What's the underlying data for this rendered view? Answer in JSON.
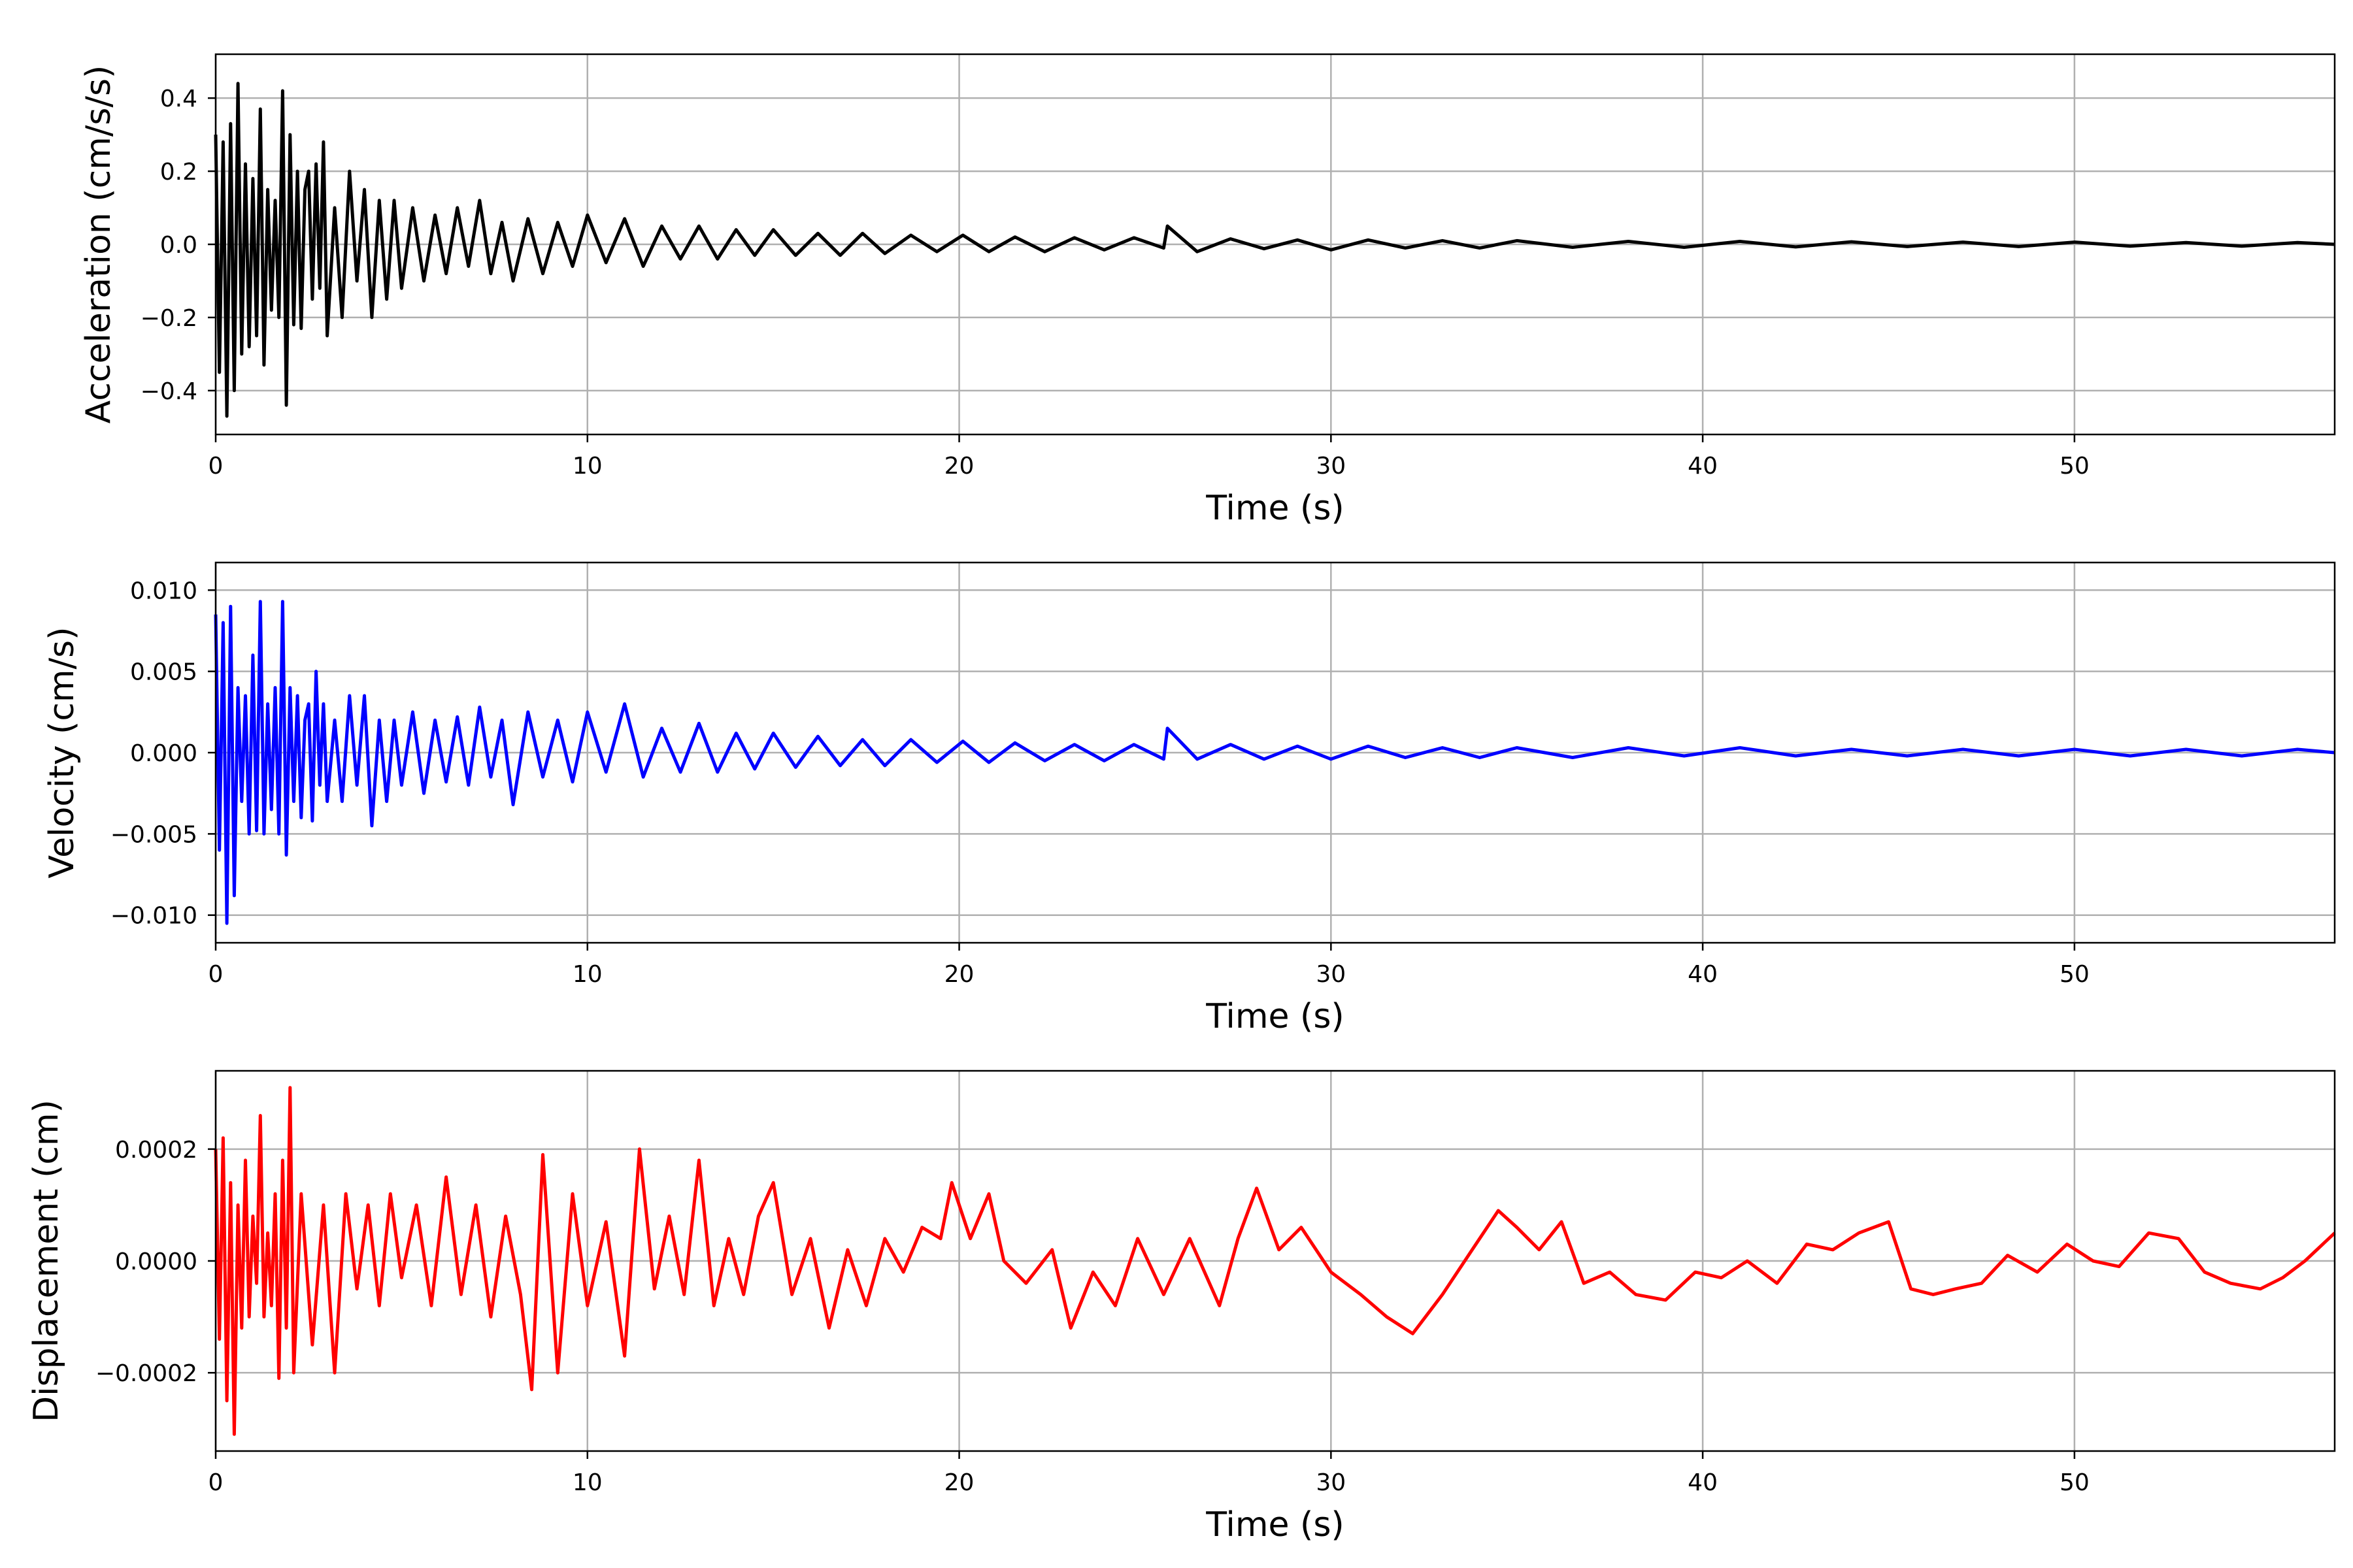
{
  "chart_data": [
    {
      "type": "line",
      "title": "",
      "xlabel": "Time (s)",
      "ylabel": "Acceleration (cm/s/s)",
      "xlim": [
        0,
        57
      ],
      "ylim": [
        -0.52,
        0.52
      ],
      "xticks": [
        0,
        10,
        20,
        30,
        40,
        50
      ],
      "xtick_labels": [
        "0",
        "10",
        "20",
        "30",
        "40",
        "50"
      ],
      "yticks": [
        -0.4,
        -0.2,
        0.0,
        0.2,
        0.4
      ],
      "ytick_labels": [
        "−0.4",
        "−0.2",
        "0.0",
        "0.2",
        "0.4"
      ],
      "grid": true,
      "series": [
        {
          "color": "#000000",
          "x": [
            0,
            0.1,
            0.2,
            0.3,
            0.4,
            0.5,
            0.6,
            0.7,
            0.8,
            0.9,
            1.0,
            1.1,
            1.2,
            1.3,
            1.4,
            1.5,
            1.6,
            1.7,
            1.8,
            1.9,
            2.0,
            2.1,
            2.2,
            2.3,
            2.4,
            2.5,
            2.6,
            2.7,
            2.8,
            2.9,
            3.0,
            3.2,
            3.4,
            3.6,
            3.8,
            4.0,
            4.2,
            4.4,
            4.6,
            4.8,
            5.0,
            5.3,
            5.6,
            5.9,
            6.2,
            6.5,
            6.8,
            7.1,
            7.4,
            7.7,
            8.0,
            8.4,
            8.8,
            9.2,
            9.6,
            10.0,
            10.5,
            11.0,
            11.5,
            12.0,
            12.5,
            13.0,
            13.5,
            14.0,
            14.5,
            15.0,
            15.6,
            16.2,
            16.8,
            17.4,
            18.0,
            18.7,
            19.4,
            20.1,
            20.8,
            21.5,
            22.3,
            23.1,
            23.9,
            24.7,
            25.5,
            25.6,
            26.4,
            27.3,
            28.2,
            29.1,
            30.0,
            31.0,
            32.0,
            33.0,
            34.0,
            35.0,
            36.5,
            38.0,
            39.5,
            41.0,
            42.5,
            44.0,
            45.5,
            47.0,
            48.5,
            50.0,
            51.5,
            53.0,
            54.5,
            56.0,
            57.0
          ],
          "values": [
            0.3,
            -0.35,
            0.28,
            -0.47,
            0.33,
            -0.4,
            0.44,
            -0.3,
            0.22,
            -0.28,
            0.18,
            -0.25,
            0.37,
            -0.33,
            0.15,
            -0.18,
            0.12,
            -0.2,
            0.42,
            -0.44,
            0.3,
            -0.22,
            0.2,
            -0.23,
            0.15,
            0.2,
            -0.15,
            0.22,
            -0.12,
            0.28,
            -0.25,
            0.1,
            -0.2,
            0.2,
            -0.1,
            0.15,
            -0.2,
            0.12,
            -0.15,
            0.12,
            -0.12,
            0.1,
            -0.1,
            0.08,
            -0.08,
            0.1,
            -0.06,
            0.12,
            -0.08,
            0.06,
            -0.1,
            0.07,
            -0.08,
            0.06,
            -0.06,
            0.08,
            -0.05,
            0.07,
            -0.06,
            0.05,
            -0.04,
            0.05,
            -0.04,
            0.04,
            -0.03,
            0.04,
            -0.03,
            0.03,
            -0.03,
            0.03,
            -0.025,
            0.025,
            -0.02,
            0.025,
            -0.02,
            0.02,
            -0.02,
            0.018,
            -0.015,
            0.018,
            -0.01,
            0.05,
            -0.02,
            0.015,
            -0.012,
            0.012,
            -0.015,
            0.012,
            -0.01,
            0.01,
            -0.01,
            0.01,
            -0.008,
            0.008,
            -0.008,
            0.008,
            -0.007,
            0.007,
            -0.006,
            0.006,
            -0.006,
            0.006,
            -0.005,
            0.005,
            -0.005,
            0.005,
            0.0
          ]
        }
      ]
    },
    {
      "type": "line",
      "title": "",
      "xlabel": "Time (s)",
      "ylabel": "Velocity (cm/s)",
      "xlim": [
        0,
        57
      ],
      "ylim": [
        -0.0117,
        0.0117
      ],
      "xticks": [
        0,
        10,
        20,
        30,
        40,
        50
      ],
      "xtick_labels": [
        "0",
        "10",
        "20",
        "30",
        "40",
        "50"
      ],
      "yticks": [
        -0.01,
        -0.005,
        0.0,
        0.005,
        0.01
      ],
      "ytick_labels": [
        "−0.010",
        "−0.005",
        "0.000",
        "0.005",
        "0.010"
      ],
      "grid": true,
      "series": [
        {
          "color": "#0000ff",
          "x": [
            0,
            0.1,
            0.2,
            0.3,
            0.4,
            0.5,
            0.6,
            0.7,
            0.8,
            0.9,
            1.0,
            1.1,
            1.2,
            1.3,
            1.4,
            1.5,
            1.6,
            1.7,
            1.8,
            1.9,
            2.0,
            2.1,
            2.2,
            2.3,
            2.4,
            2.5,
            2.6,
            2.7,
            2.8,
            2.9,
            3.0,
            3.2,
            3.4,
            3.6,
            3.8,
            4.0,
            4.2,
            4.4,
            4.6,
            4.8,
            5.0,
            5.3,
            5.6,
            5.9,
            6.2,
            6.5,
            6.8,
            7.1,
            7.4,
            7.7,
            8.0,
            8.4,
            8.8,
            9.2,
            9.6,
            10.0,
            10.5,
            11.0,
            11.5,
            12.0,
            12.5,
            13.0,
            13.5,
            14.0,
            14.5,
            15.0,
            15.6,
            16.2,
            16.8,
            17.4,
            18.0,
            18.7,
            19.4,
            20.1,
            20.8,
            21.5,
            22.3,
            23.1,
            23.9,
            24.7,
            25.5,
            25.6,
            26.4,
            27.3,
            28.2,
            29.1,
            30.0,
            31.0,
            32.0,
            33.0,
            34.0,
            35.0,
            36.5,
            38.0,
            39.5,
            41.0,
            42.5,
            44.0,
            45.5,
            47.0,
            48.5,
            50.0,
            51.5,
            53.0,
            54.5,
            56.0,
            57.0
          ],
          "values": [
            0.0085,
            -0.006,
            0.008,
            -0.0105,
            0.009,
            -0.0088,
            0.004,
            -0.003,
            0.0035,
            -0.005,
            0.006,
            -0.0048,
            0.0093,
            -0.005,
            0.003,
            -0.0035,
            0.004,
            -0.005,
            0.0093,
            -0.0063,
            0.004,
            -0.003,
            0.0035,
            -0.004,
            0.002,
            0.003,
            -0.0042,
            0.005,
            -0.002,
            0.003,
            -0.003,
            0.002,
            -0.003,
            0.0035,
            -0.002,
            0.0035,
            -0.0045,
            0.002,
            -0.003,
            0.002,
            -0.002,
            0.0025,
            -0.0025,
            0.002,
            -0.0018,
            0.0022,
            -0.002,
            0.0028,
            -0.0015,
            0.002,
            -0.0032,
            0.0025,
            -0.0015,
            0.002,
            -0.0018,
            0.0025,
            -0.0012,
            0.003,
            -0.0015,
            0.0015,
            -0.0012,
            0.0018,
            -0.0012,
            0.0012,
            -0.001,
            0.0012,
            -0.0009,
            0.001,
            -0.0008,
            0.0008,
            -0.0008,
            0.0008,
            -0.0006,
            0.0007,
            -0.0006,
            0.0006,
            -0.0005,
            0.0005,
            -0.0005,
            0.0005,
            -0.0004,
            0.0015,
            -0.0004,
            0.0005,
            -0.0004,
            0.0004,
            -0.0004,
            0.0004,
            -0.0003,
            0.0003,
            -0.0003,
            0.0003,
            -0.0003,
            0.0003,
            -0.0002,
            0.0003,
            -0.0002,
            0.0002,
            -0.0002,
            0.0002,
            -0.0002,
            0.0002,
            -0.0002,
            0.0002,
            -0.0002,
            0.0002,
            0.0
          ]
        }
      ]
    },
    {
      "type": "line",
      "title": "",
      "xlabel": "Time (s)",
      "ylabel": "Displacement (cm)",
      "xlim": [
        0,
        57
      ],
      "ylim": [
        -0.00034,
        0.00034
      ],
      "xticks": [
        0,
        10,
        20,
        30,
        40,
        50
      ],
      "xtick_labels": [
        "0",
        "10",
        "20",
        "30",
        "40",
        "50"
      ],
      "yticks": [
        -0.0002,
        0.0,
        0.0002
      ],
      "ytick_labels": [
        "−0.0002",
        "0.0000",
        "0.0002"
      ],
      "grid": true,
      "series": [
        {
          "color": "#ff0000",
          "x": [
            0,
            0.1,
            0.2,
            0.3,
            0.4,
            0.5,
            0.6,
            0.7,
            0.8,
            0.9,
            1.0,
            1.1,
            1.2,
            1.3,
            1.4,
            1.5,
            1.6,
            1.7,
            1.8,
            1.9,
            2.0,
            2.1,
            2.3,
            2.6,
            2.9,
            3.2,
            3.5,
            3.8,
            4.1,
            4.4,
            4.7,
            5.0,
            5.4,
            5.8,
            6.2,
            6.6,
            7.0,
            7.4,
            7.8,
            8.2,
            8.5,
            8.8,
            9.2,
            9.6,
            10.0,
            10.5,
            11.0,
            11.4,
            11.8,
            12.2,
            12.6,
            13.0,
            13.4,
            13.8,
            14.2,
            14.6,
            15.0,
            15.5,
            16.0,
            16.5,
            17.0,
            17.5,
            18.0,
            18.5,
            19.0,
            19.5,
            19.8,
            20.3,
            20.8,
            21.2,
            21.8,
            22.5,
            23.0,
            23.6,
            24.2,
            24.8,
            25.5,
            26.2,
            27.0,
            27.5,
            28.0,
            28.6,
            29.2,
            30.0,
            30.8,
            31.5,
            32.2,
            33.0,
            33.8,
            34.5,
            35.0,
            35.6,
            36.2,
            36.8,
            37.5,
            38.2,
            39.0,
            39.8,
            40.5,
            41.2,
            42.0,
            42.8,
            43.5,
            44.2,
            45.0,
            45.6,
            46.2,
            46.8,
            47.5,
            48.2,
            49.0,
            49.8,
            50.5,
            51.2,
            52.0,
            52.8,
            53.5,
            54.2,
            55.0,
            55.6,
            56.2,
            57.0
          ],
          "values": [
            0.0002,
            -0.00014,
            0.00022,
            -0.00025,
            0.00014,
            -0.00031,
            0.0001,
            -0.00012,
            0.00018,
            -0.0001,
            8e-05,
            -4e-05,
            0.00026,
            -0.0001,
            5e-05,
            -8e-05,
            0.00012,
            -0.00021,
            0.00018,
            -0.00012,
            0.00031,
            -0.0002,
            0.00012,
            -0.00015,
            0.0001,
            -0.0002,
            0.00012,
            -5e-05,
            0.0001,
            -8e-05,
            0.00012,
            -3e-05,
            0.0001,
            -8e-05,
            0.00015,
            -6e-05,
            0.0001,
            -0.0001,
            8e-05,
            -6e-05,
            -0.00023,
            0.00019,
            -0.0002,
            0.00012,
            -8e-05,
            7e-05,
            -0.00017,
            0.0002,
            -5e-05,
            8e-05,
            -6e-05,
            0.00018,
            -8e-05,
            4e-05,
            -6e-05,
            8e-05,
            0.00014,
            -6e-05,
            4e-05,
            -0.00012,
            2e-05,
            -8e-05,
            4e-05,
            -2e-05,
            6e-05,
            4e-05,
            0.00014,
            4e-05,
            0.00012,
            0.0,
            -4e-05,
            2e-05,
            -0.00012,
            -2e-05,
            -8e-05,
            4e-05,
            -6e-05,
            4e-05,
            -8e-05,
            4e-05,
            0.00013,
            2e-05,
            6e-05,
            -2e-05,
            -6e-05,
            -0.0001,
            -0.00013,
            -6e-05,
            2e-05,
            9e-05,
            6e-05,
            2e-05,
            7e-05,
            -4e-05,
            -2e-05,
            -6e-05,
            -7e-05,
            -2e-05,
            -3e-05,
            0.0,
            -4e-05,
            3e-05,
            2e-05,
            5e-05,
            7e-05,
            -5e-05,
            -6e-05,
            -5e-05,
            -4e-05,
            1e-05,
            -2e-05,
            3e-05,
            0.0,
            -1e-05,
            5e-05,
            4e-05,
            -2e-05,
            -4e-05,
            -5e-05,
            -3e-05,
            0.0,
            5e-05
          ]
        }
      ]
    }
  ]
}
